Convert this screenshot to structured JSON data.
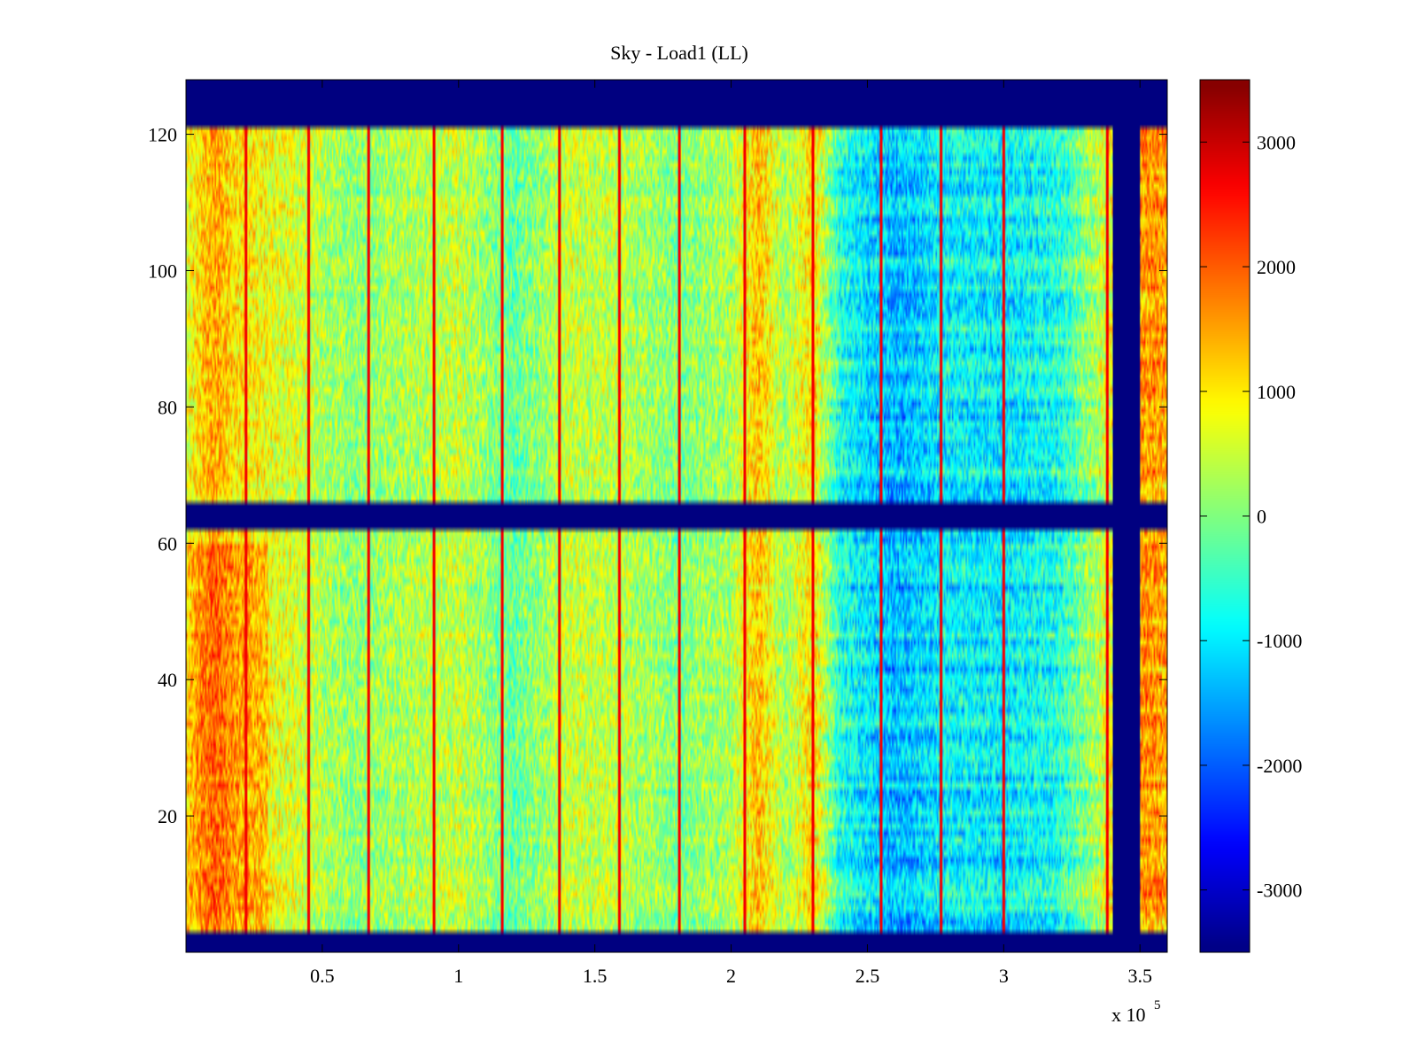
{
  "chart_data": {
    "type": "heatmap",
    "title": "Sky - Load1 (LL)",
    "xlabel": "",
    "ylabel": "",
    "xlim": [
      0,
      360000
    ],
    "ylim": [
      0,
      128
    ],
    "x_exponent_label": "x 10",
    "x_exponent_power": "5",
    "xticks": [
      {
        "value": 50000,
        "label": "0.5"
      },
      {
        "value": 100000,
        "label": "1"
      },
      {
        "value": 150000,
        "label": "1.5"
      },
      {
        "value": 200000,
        "label": "2"
      },
      {
        "value": 250000,
        "label": "2.5"
      },
      {
        "value": 300000,
        "label": "3"
      },
      {
        "value": 350000,
        "label": "3.5"
      }
    ],
    "yticks": [
      {
        "value": 20,
        "label": "20"
      },
      {
        "value": 40,
        "label": "40"
      },
      {
        "value": 60,
        "label": "60"
      },
      {
        "value": 80,
        "label": "80"
      },
      {
        "value": 100,
        "label": "100"
      },
      {
        "value": 120,
        "label": "120"
      }
    ],
    "colorbar": {
      "colormap": "jet",
      "clim": [
        -3500,
        3500
      ],
      "ticks": [
        {
          "value": 3000,
          "label": "3000"
        },
        {
          "value": 2000,
          "label": "2000"
        },
        {
          "value": 1000,
          "label": "1000"
        },
        {
          "value": 0,
          "label": "0"
        },
        {
          "value": -1000,
          "label": "-1000"
        },
        {
          "value": -2000,
          "label": "-2000"
        },
        {
          "value": -3000,
          "label": "-3000"
        }
      ]
    },
    "masked_row_bands": [
      [
        0,
        3
      ],
      [
        62,
        66.5
      ],
      [
        121.5,
        128
      ]
    ],
    "masked_column_band": [
      340000,
      350000
    ],
    "anomalous_row": 39,
    "bright_column_lines": [
      22000,
      45000,
      67000,
      91000,
      116000,
      137000,
      159000,
      181000,
      205000,
      230000,
      255000,
      277000,
      300000,
      338000
    ],
    "column_profile": [
      {
        "x": 0,
        "value": 700
      },
      {
        "x": 10000,
        "value": 1500
      },
      {
        "x": 20000,
        "value": 1000
      },
      {
        "x": 40000,
        "value": 600
      },
      {
        "x": 60000,
        "value": 100
      },
      {
        "x": 80000,
        "value": 300
      },
      {
        "x": 100000,
        "value": 500
      },
      {
        "x": 120000,
        "value": -200
      },
      {
        "x": 140000,
        "value": 500
      },
      {
        "x": 160000,
        "value": 400
      },
      {
        "x": 180000,
        "value": 0
      },
      {
        "x": 200000,
        "value": 300
      },
      {
        "x": 210000,
        "value": 1300
      },
      {
        "x": 220000,
        "value": 200
      },
      {
        "x": 230000,
        "value": 1100
      },
      {
        "x": 240000,
        "value": -700
      },
      {
        "x": 260000,
        "value": -1400
      },
      {
        "x": 280000,
        "value": -900
      },
      {
        "x": 300000,
        "value": -1000
      },
      {
        "x": 320000,
        "value": -700
      },
      {
        "x": 335000,
        "value": 400
      },
      {
        "x": 351000,
        "value": 1600
      },
      {
        "x": 360000,
        "value": 1500
      }
    ]
  }
}
